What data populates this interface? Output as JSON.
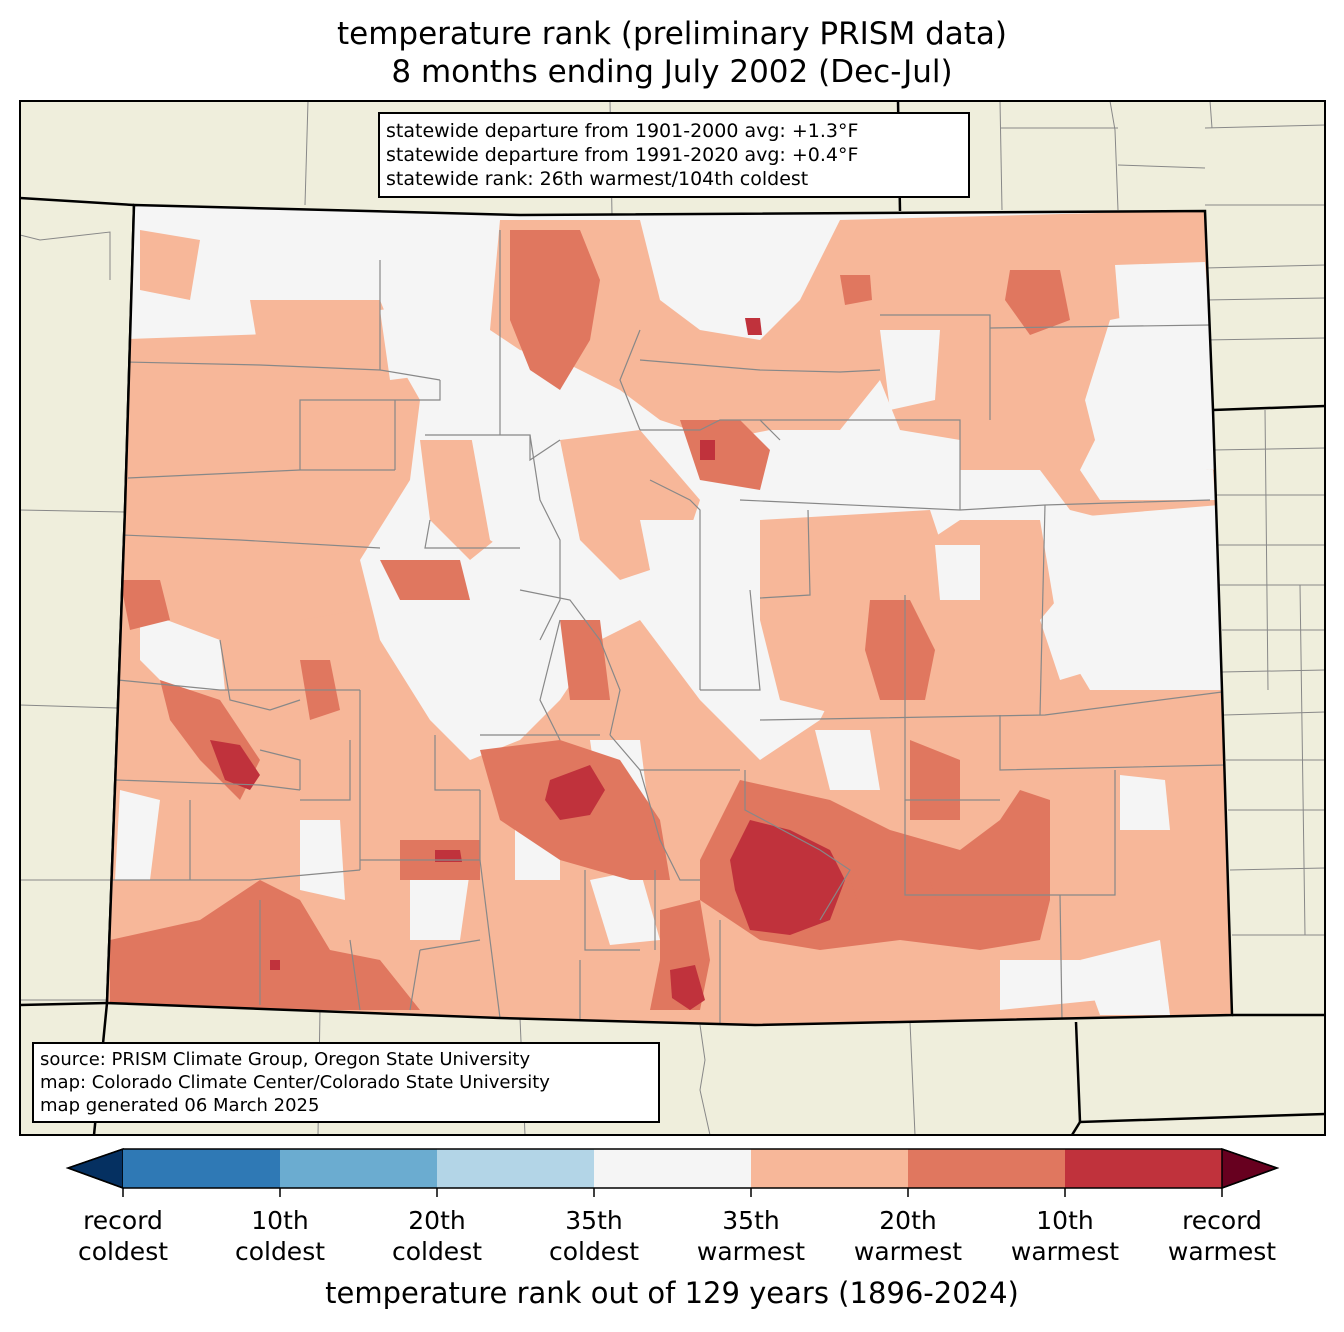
{
  "title": {
    "line1": "temperature rank (preliminary PRISM data)",
    "line2": "8 months ending July 2002 (Dec-Jul)"
  },
  "stats_box": {
    "line1": "statewide departure from 1901-2000 avg: +1.3°F",
    "line2": "statewide departure from 1991-2020 avg: +0.4°F",
    "line3": "statewide rank: 26th warmest/104th coldest"
  },
  "source_box": {
    "line1": "source: PRISM Climate Group, Oregon State University",
    "line2": "map: Colorado Climate Center/Colorado State University",
    "line3": "map generated 06 March 2025"
  },
  "colorbar": {
    "title": "temperature rank out of 129 years (1896-2024)",
    "colors": [
      "#053061",
      "#2f79b5",
      "#6bacd0",
      "#b3d5e7",
      "#f5f5f5",
      "#f7b799",
      "#e0775f",
      "#c0323c",
      "#67001f"
    ],
    "labels": [
      {
        "top": "record",
        "bottom": "coldest"
      },
      {
        "top": "10th",
        "bottom": "coldest"
      },
      {
        "top": "20th",
        "bottom": "coldest"
      },
      {
        "top": "35th",
        "bottom": "coldest"
      },
      {
        "top": "35th",
        "bottom": "warmest"
      },
      {
        "top": "20th",
        "bottom": "warmest"
      },
      {
        "top": "10th",
        "bottom": "warmest"
      },
      {
        "top": "record",
        "bottom": "warmest"
      }
    ]
  },
  "map_colors": {
    "land": "#efeedc",
    "near_normal": "#f5f5f5",
    "warm_35": "#f7b799",
    "warm_20": "#e0775f",
    "warm_10": "#c0323c"
  }
}
